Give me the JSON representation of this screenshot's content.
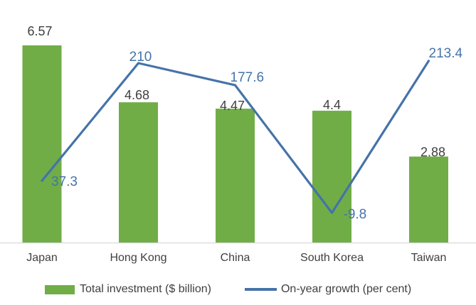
{
  "chart_data": {
    "type": "combo-bar-line",
    "categories": [
      "Japan",
      "Hong Kong",
      "China",
      "South Korea",
      "Taiwan"
    ],
    "series": [
      {
        "name": "Total investment ($ billion)",
        "type": "bar",
        "values": [
          6.57,
          4.68,
          4.47,
          4.4,
          2.88
        ],
        "labels": [
          "6.57",
          "4.68",
          "4.47",
          "4.4",
          "2.88"
        ],
        "color": "#70AD47"
      },
      {
        "name": "On-year growth (per cent)",
        "type": "line",
        "values": [
          37.3,
          210,
          177.6,
          -9.8,
          213.4
        ],
        "labels": [
          "37.3",
          "210",
          "177.6",
          "-9.8",
          "213.4"
        ],
        "color": "#4573A8"
      }
    ],
    "title": "",
    "xlabel": "",
    "ylabel": "",
    "grid": false,
    "legend_position": "bottom",
    "axes_visible": {
      "x": true,
      "y": false
    },
    "bar_label_color": "#3F3F3F",
    "category_label_color": "#404040",
    "axis_line_color": "#D9D9D9",
    "background_color": "#FFFFFF"
  },
  "legend": {
    "bar_label": "Total investment ($ billion)",
    "line_label": "On-year growth (per cent)"
  }
}
